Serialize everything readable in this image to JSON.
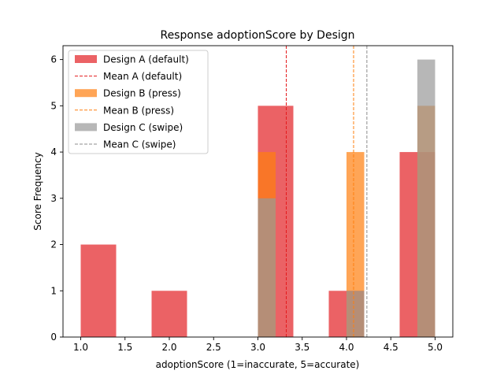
{
  "chart_data": {
    "type": "bar",
    "title": "Response adoptionScore by Design",
    "xlabel": "adoptionScore (1=inaccurate, 5=accurate)",
    "ylabel": "Score Frequency",
    "xlim": [
      0.8,
      5.2
    ],
    "ylim": [
      0,
      6.3
    ],
    "xticks": [
      "1.0",
      "1.5",
      "2.0",
      "2.5",
      "3.0",
      "3.5",
      "4.0",
      "4.5",
      "5.0"
    ],
    "yticks": [
      "0",
      "1",
      "2",
      "3",
      "4",
      "5",
      "6"
    ],
    "grid": false,
    "legend_position": "top-left",
    "series": [
      {
        "name": "Design A (default)",
        "color": "#e8474a",
        "opacity": 0.85,
        "bins": [
          {
            "x0": 1.0,
            "x1": 1.4,
            "count": 2
          },
          {
            "x0": 1.8,
            "x1": 2.2,
            "count": 1
          },
          {
            "x0": 3.0,
            "x1": 3.4,
            "count": 5
          },
          {
            "x0": 3.8,
            "x1": 4.2,
            "count": 1
          },
          {
            "x0": 4.6,
            "x1": 5.0,
            "count": 4
          }
        ],
        "mean": 3.32,
        "mean_label": "Mean A (default)",
        "mean_color": "#e41a1c"
      },
      {
        "name": "Design B (press)",
        "color": "#ff7f0e",
        "opacity": 0.7,
        "bins": [
          {
            "x0": 3.0,
            "x1": 3.2,
            "count": 4
          },
          {
            "x0": 4.0,
            "x1": 4.2,
            "count": 4
          },
          {
            "x0": 4.8,
            "x1": 5.0,
            "count": 5
          }
        ],
        "mean": 4.08,
        "mean_label": "Mean B (press)",
        "mean_color": "#ff7f0e"
      },
      {
        "name": "Design C (swipe)",
        "color": "#999999",
        "opacity": 0.7,
        "bins": [
          {
            "x0": 3.0,
            "x1": 3.2,
            "count": 3
          },
          {
            "x0": 4.0,
            "x1": 4.2,
            "count": 1
          },
          {
            "x0": 4.8,
            "x1": 5.0,
            "count": 6
          }
        ],
        "mean": 4.23,
        "mean_label": "Mean C (swipe)",
        "mean_color": "#8c8c8c"
      }
    ]
  }
}
